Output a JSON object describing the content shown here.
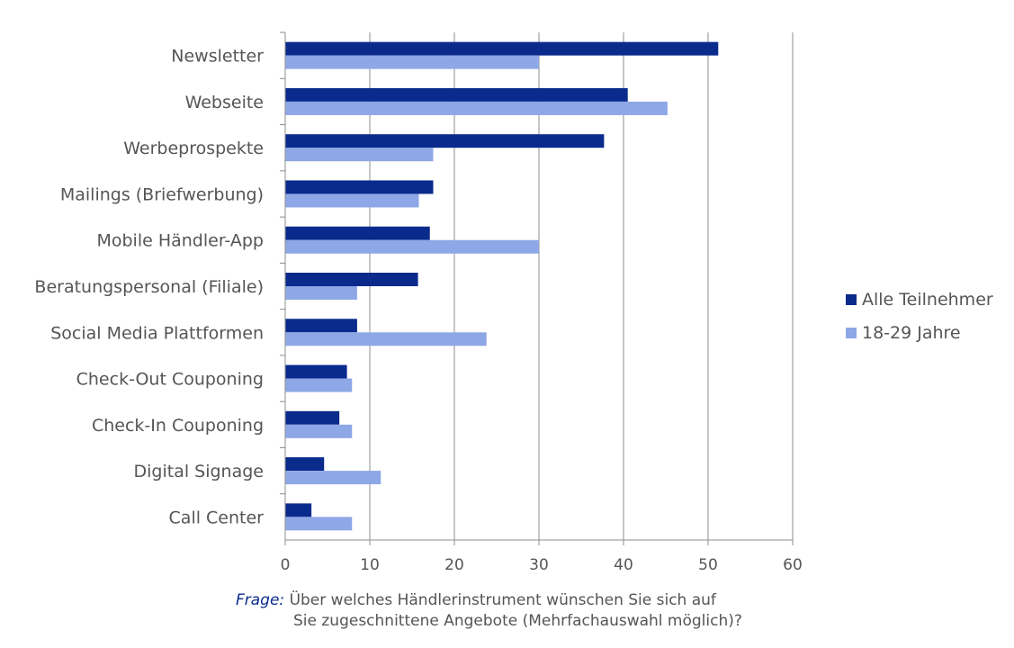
{
  "chart_data": {
    "type": "bar",
    "orientation": "horizontal",
    "categories": [
      "Newsletter",
      "Webseite",
      "Werbeprospekte",
      "Mailings (Briefwerbung)",
      "Mobile Händler-App",
      "Beratungspersonal (Filiale)",
      "Social Media Plattformen",
      "Check-Out Couponing",
      "Check-In Couponing",
      "Digital Signage",
      "Call Center"
    ],
    "series": [
      {
        "name": "Alle Teilnehmer",
        "color": "#0a2a8c",
        "values": [
          51.2,
          40.5,
          37.7,
          17.5,
          17.1,
          15.7,
          8.5,
          7.3,
          6.4,
          4.6,
          3.1
        ]
      },
      {
        "name": "18-29 Jahre",
        "color": "#8ea7e6",
        "values": [
          30.0,
          45.2,
          17.5,
          15.8,
          30.0,
          8.5,
          23.8,
          7.9,
          7.9,
          11.3,
          7.9
        ]
      }
    ],
    "xlim": [
      0,
      60
    ],
    "xticks": [
      "0",
      "10",
      "20",
      "30",
      "40",
      "50",
      "60"
    ],
    "grid": "vertical",
    "legend_position": "right"
  },
  "caption": {
    "label": "Frage:",
    "line1": "Über welches Händlerinstrument wünschen Sie sich auf",
    "line2": "Sie zugeschnittene Angebote (Mehrfachauswahl möglich)?"
  }
}
